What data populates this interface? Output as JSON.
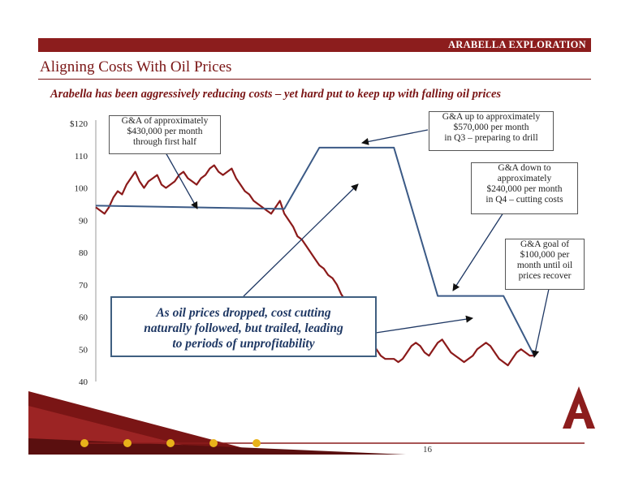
{
  "header": {
    "company": "ARABELLA EXPLORATION"
  },
  "title": "Aligning Costs With Oil Prices",
  "subtitle": "Arabella has been aggressively reducing costs – yet hard put to keep up with falling oil prices",
  "page_number": "16",
  "callouts": [
    {
      "lines": [
        "G&A of approximately",
        "$430,000 per month",
        "through first half"
      ]
    },
    {
      "lines": [
        "G&A up to approximately",
        "$570,000 per month",
        "in Q3 – preparing to drill"
      ]
    },
    {
      "lines": [
        "G&A down to",
        "approximately",
        "$240,000 per month",
        "in Q4 – cutting costs"
      ]
    },
    {
      "lines": [
        "G&A goal of",
        "$100,000 per",
        "month until oil",
        "prices recover"
      ]
    }
  ],
  "big_callout": {
    "lines": [
      "As oil prices dropped, cost cutting",
      "naturally followed, but trailed, leading",
      "to periods of unprofitability"
    ]
  },
  "colors": {
    "brand": "#8c1d1d",
    "oil_line": "#8b1a1a",
    "ga_line": "#3b5a86",
    "callout_text": "#1f3864",
    "accent_gold": "#e8b21a"
  },
  "chart_data": {
    "type": "line",
    "title": "",
    "xlabel": "",
    "ylabel": "",
    "ylim": [
      40,
      120
    ],
    "yticks": [
      40,
      50,
      60,
      70,
      80,
      90,
      100,
      110,
      120
    ],
    "ytick_labels": [
      "40",
      "50",
      "60",
      "70",
      "80",
      "90",
      "100",
      "110",
      "$120"
    ],
    "grid": false,
    "legend": "none",
    "x_domain": [
      0,
      100
    ],
    "series": [
      {
        "x": [
          0,
          1,
          2,
          3,
          4,
          5,
          6,
          7,
          8,
          9,
          10,
          11,
          12,
          13,
          14,
          15,
          16,
          17,
          18,
          19,
          20,
          21,
          22,
          23,
          24,
          25,
          26,
          27,
          28,
          29,
          30,
          31,
          32,
          33,
          34,
          35,
          36,
          37,
          38,
          39,
          40,
          41,
          42,
          43,
          44,
          45,
          46,
          47,
          48,
          49,
          50,
          51,
          52,
          53,
          54,
          55,
          56,
          57,
          58,
          59,
          60,
          61,
          62,
          63,
          64,
          65,
          66,
          67,
          68,
          69,
          70,
          71,
          72,
          73,
          74,
          75,
          76,
          77,
          78,
          79,
          80,
          81,
          82,
          83,
          84,
          85,
          86,
          87,
          88,
          89,
          90,
          91,
          92,
          93,
          94,
          95,
          96,
          97,
          98,
          99,
          100
        ],
        "values": [
          94,
          93,
          92,
          94,
          97,
          99,
          98,
          101,
          103,
          105,
          102,
          100,
          102,
          103,
          104,
          101,
          100,
          101,
          102,
          104,
          105,
          103,
          102,
          101,
          103,
          104,
          106,
          107,
          105,
          104,
          105,
          106,
          103,
          101,
          99,
          98,
          96,
          95,
          94,
          93,
          92,
          94,
          96,
          92,
          90,
          88,
          85,
          84,
          82,
          80,
          78,
          76,
          75,
          73,
          72,
          70,
          67,
          65,
          62,
          58,
          57,
          56,
          54,
          52,
          50,
          48,
          47,
          47,
          47,
          46,
          47,
          49,
          51,
          52,
          51,
          49,
          48,
          50,
          52,
          53,
          51,
          49,
          48,
          47,
          46,
          47,
          48,
          50,
          51,
          52,
          51,
          49,
          47,
          46,
          45,
          47,
          49,
          50,
          49,
          48,
          48
        ]
      },
      {
        "x": [
          0,
          43,
          51,
          68,
          78,
          93,
          100
        ],
        "values": [
          94.5,
          93.5,
          112.5,
          112.5,
          66.5,
          66.5,
          48
        ]
      }
    ]
  }
}
